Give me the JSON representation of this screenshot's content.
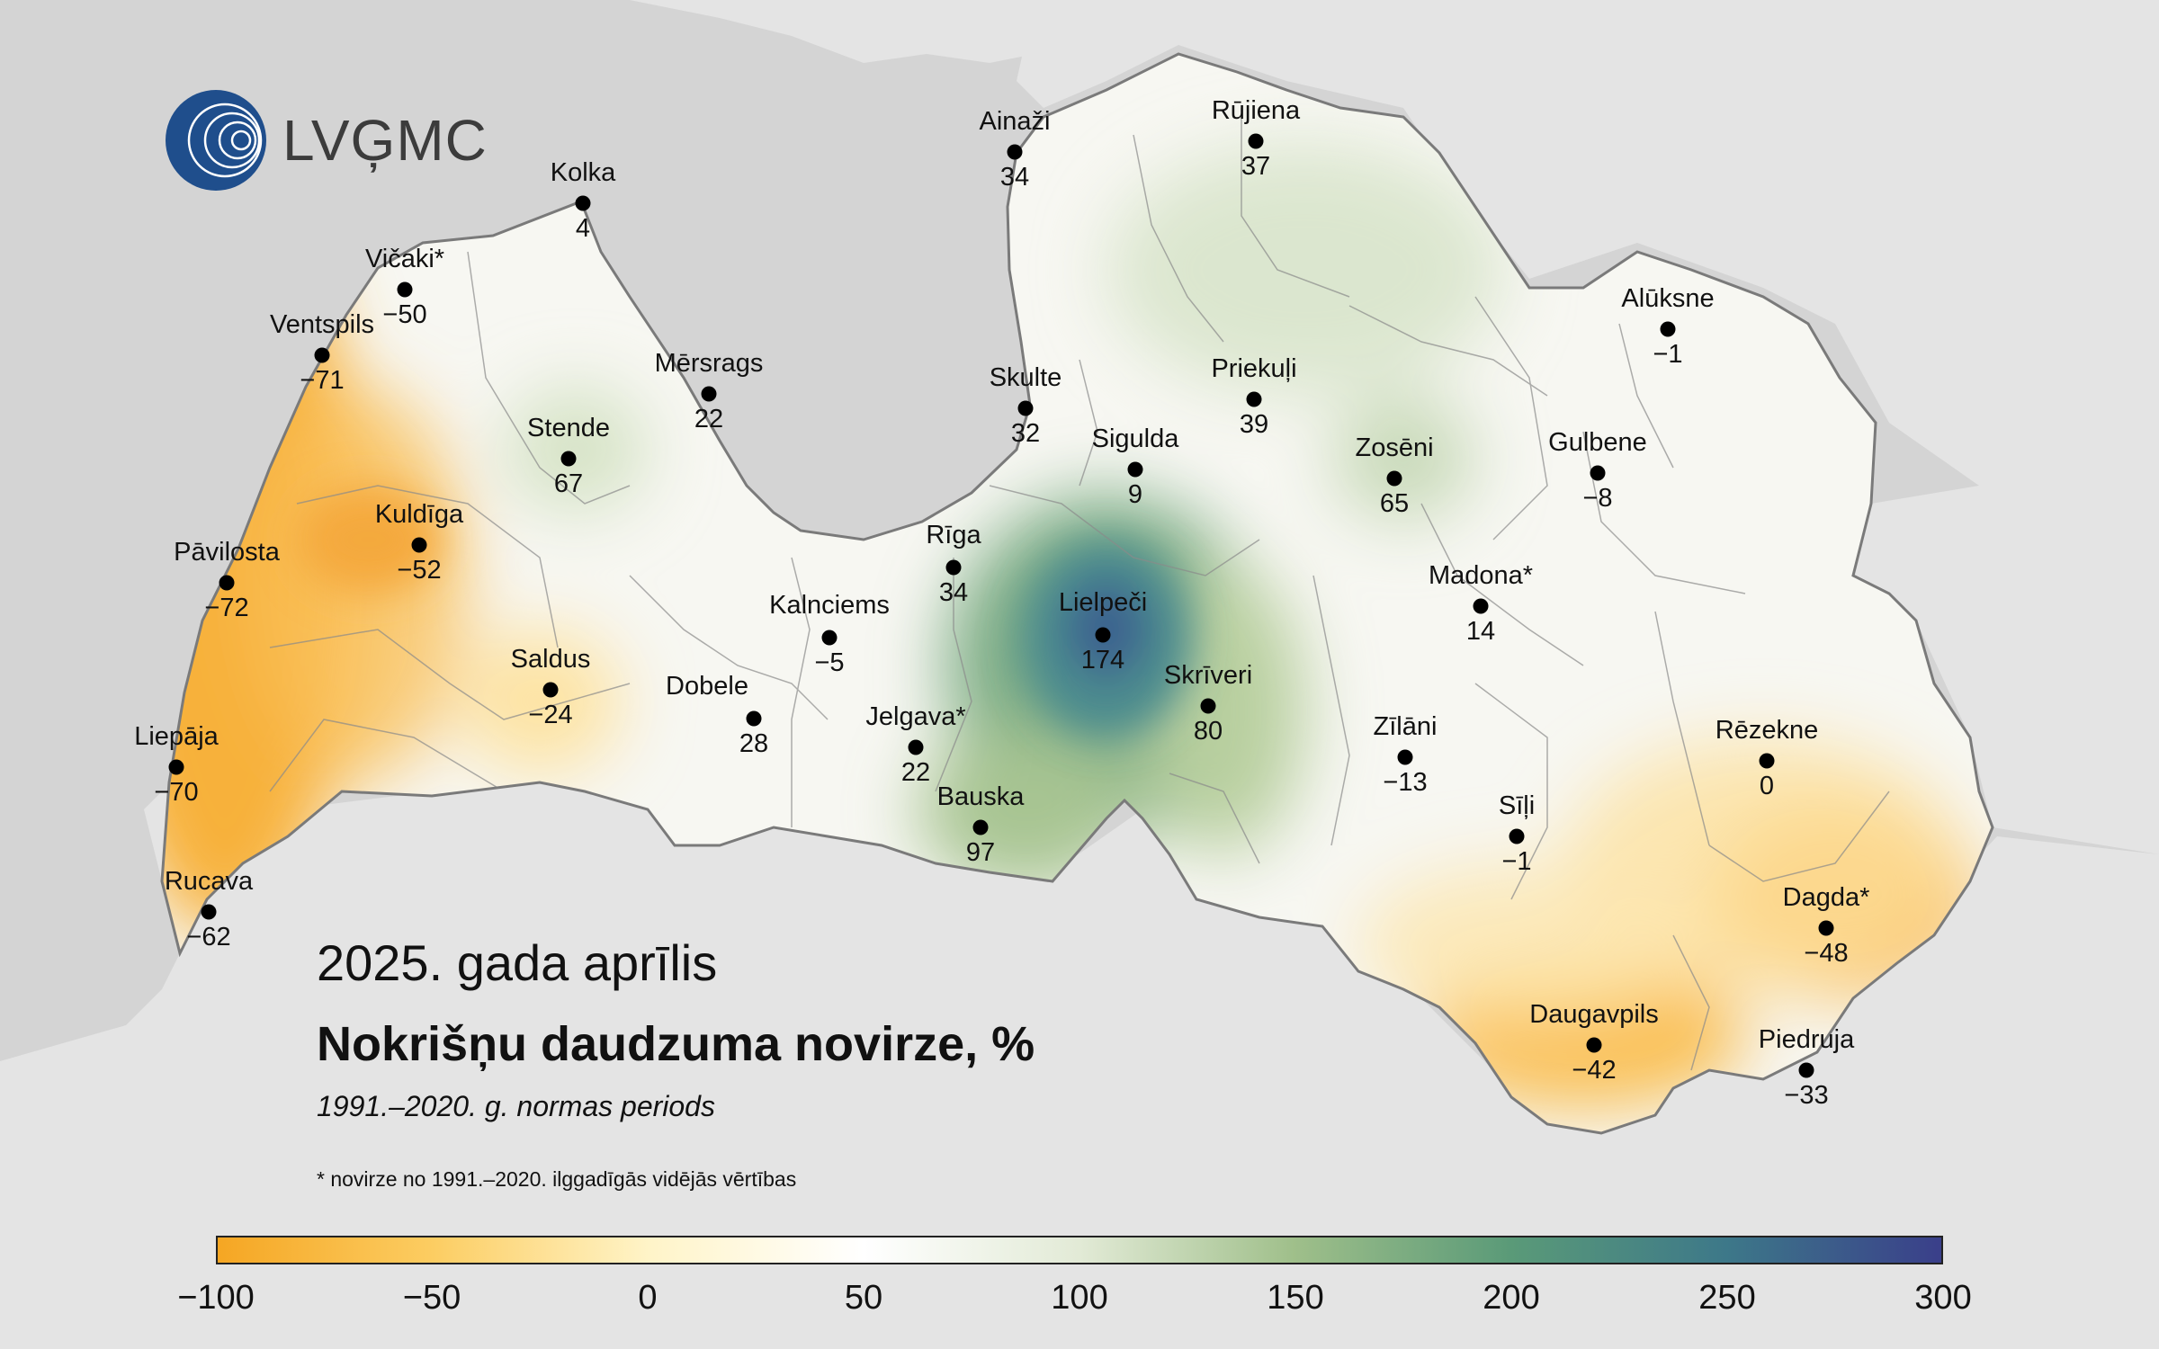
{
  "logo": {
    "text": "LVĢMC",
    "icon": "lvgmc-globe-icon"
  },
  "title": {
    "date": "2025. gada aprīlis",
    "main": "Nokrišņu daudzuma novirze, %",
    "period": "1991.–2020. g. normas periods",
    "footnote": "* novirze no 1991.–2020. ilggadīgās vidējās vērtības"
  },
  "colors": {
    "sea": "#d4d4d4",
    "land_outside": "#e4e4e4",
    "border": "#7a7a7a",
    "scale": [
      "#f5a623",
      "#fccd62",
      "#fff4c8",
      "#ffffff",
      "#e2ead6",
      "#9fbf8a",
      "#5a9a78",
      "#3d7889",
      "#3a3f8a"
    ]
  },
  "stations": [
    {
      "name": "Kolka",
      "value": "4"
    },
    {
      "name": "Ainaži",
      "value": "34"
    },
    {
      "name": "Rūjiena",
      "value": "37"
    },
    {
      "name": "Vičaki*",
      "value": "−50"
    },
    {
      "name": "Ventspils",
      "value": "−71"
    },
    {
      "name": "Mērsrags",
      "value": "22"
    },
    {
      "name": "Skulte",
      "value": "32"
    },
    {
      "name": "Alūksne",
      "value": "−1"
    },
    {
      "name": "Priekuļi",
      "value": "39"
    },
    {
      "name": "Stende",
      "value": "67"
    },
    {
      "name": "Sigulda",
      "value": "9"
    },
    {
      "name": "Zosēni",
      "value": "65"
    },
    {
      "name": "Gulbene",
      "value": "−8"
    },
    {
      "name": "Kuldīga",
      "value": "−52"
    },
    {
      "name": "Pāvilosta",
      "value": "−72"
    },
    {
      "name": "Rīga",
      "value": "34"
    },
    {
      "name": "Madona*",
      "value": "14"
    },
    {
      "name": "Lielpeči",
      "value": "174"
    },
    {
      "name": "Kalnciems",
      "value": "−5"
    },
    {
      "name": "Saldus",
      "value": "−24"
    },
    {
      "name": "Skrīveri",
      "value": "80"
    },
    {
      "name": "Dobele",
      "value": "28"
    },
    {
      "name": "Jelgava*",
      "value": "22"
    },
    {
      "name": "Liepāja",
      "value": "−70"
    },
    {
      "name": "Zīlāni",
      "value": "−13"
    },
    {
      "name": "Rēzekne",
      "value": "0"
    },
    {
      "name": "Sīļi",
      "value": "−1"
    },
    {
      "name": "Bauska",
      "value": "97"
    },
    {
      "name": "Rucava",
      "value": "−62"
    },
    {
      "name": "Dagda*",
      "value": "−48"
    },
    {
      "name": "Daugavpils",
      "value": "−42"
    },
    {
      "name": "Piedruja",
      "value": "−33"
    }
  ],
  "scale": {
    "ticks": [
      "−100",
      "−50",
      "0",
      "50",
      "100",
      "150",
      "200",
      "250",
      "300"
    ],
    "min": -100,
    "max": 300
  }
}
